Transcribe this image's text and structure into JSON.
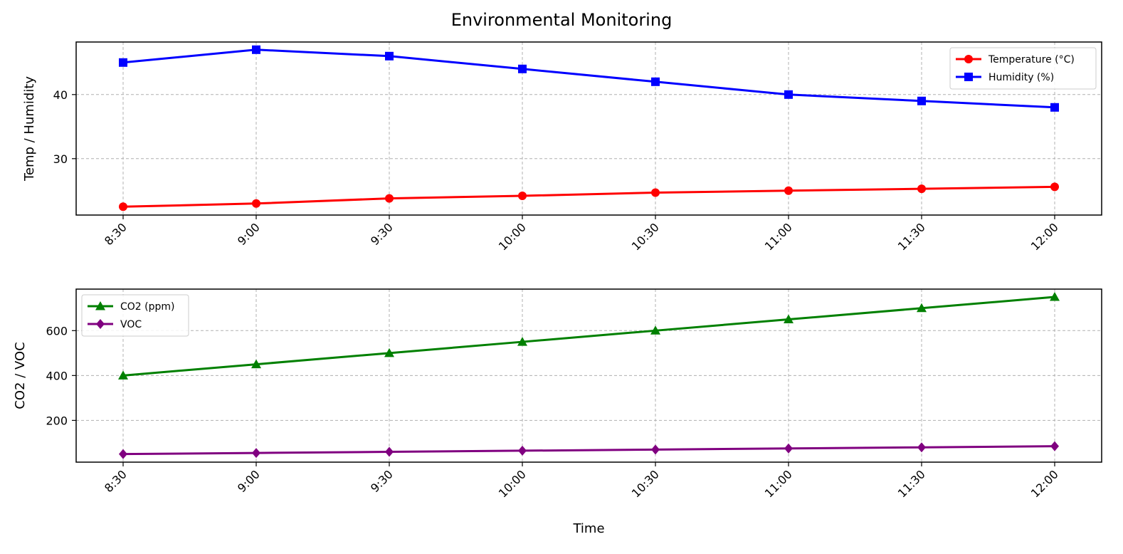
{
  "figure": {
    "title": "Environmental Monitoring"
  },
  "chart_data": [
    {
      "type": "line",
      "title": "",
      "xlabel": "",
      "ylabel": "Temp / Humidity",
      "categories": [
        "8:30",
        "9:00",
        "9:30",
        "10:00",
        "10:30",
        "11:00",
        "11:30",
        "12:00"
      ],
      "yticks": [
        30,
        40
      ],
      "ylim": [
        21.2,
        48.2
      ],
      "grid": true,
      "legend": "top-right",
      "series": [
        {
          "name": "Temperature (°C)",
          "color": "#ff0000",
          "marker": "circle",
          "values": [
            22.5,
            23.0,
            23.8,
            24.2,
            24.7,
            25.0,
            25.3,
            25.6
          ]
        },
        {
          "name": "Humidity (%)",
          "color": "#0000ff",
          "marker": "square",
          "values": [
            45,
            47,
            46,
            44,
            42,
            40,
            39,
            38
          ]
        }
      ]
    },
    {
      "type": "line",
      "title": "",
      "xlabel": "Time",
      "ylabel": "CO2 / VOC",
      "categories": [
        "8:30",
        "9:00",
        "9:30",
        "10:00",
        "10:30",
        "11:00",
        "11:30",
        "12:00"
      ],
      "yticks": [
        200,
        400,
        600
      ],
      "ylim": [
        14,
        785
      ],
      "grid": true,
      "legend": "top-left",
      "series": [
        {
          "name": "CO2 (ppm)",
          "color": "#008000",
          "marker": "triangle",
          "values": [
            400,
            450,
            500,
            550,
            600,
            650,
            700,
            750
          ]
        },
        {
          "name": "VOC",
          "color": "#800080",
          "marker": "diamond",
          "values": [
            50,
            55,
            60,
            65,
            70,
            75,
            80,
            85
          ]
        }
      ]
    }
  ]
}
